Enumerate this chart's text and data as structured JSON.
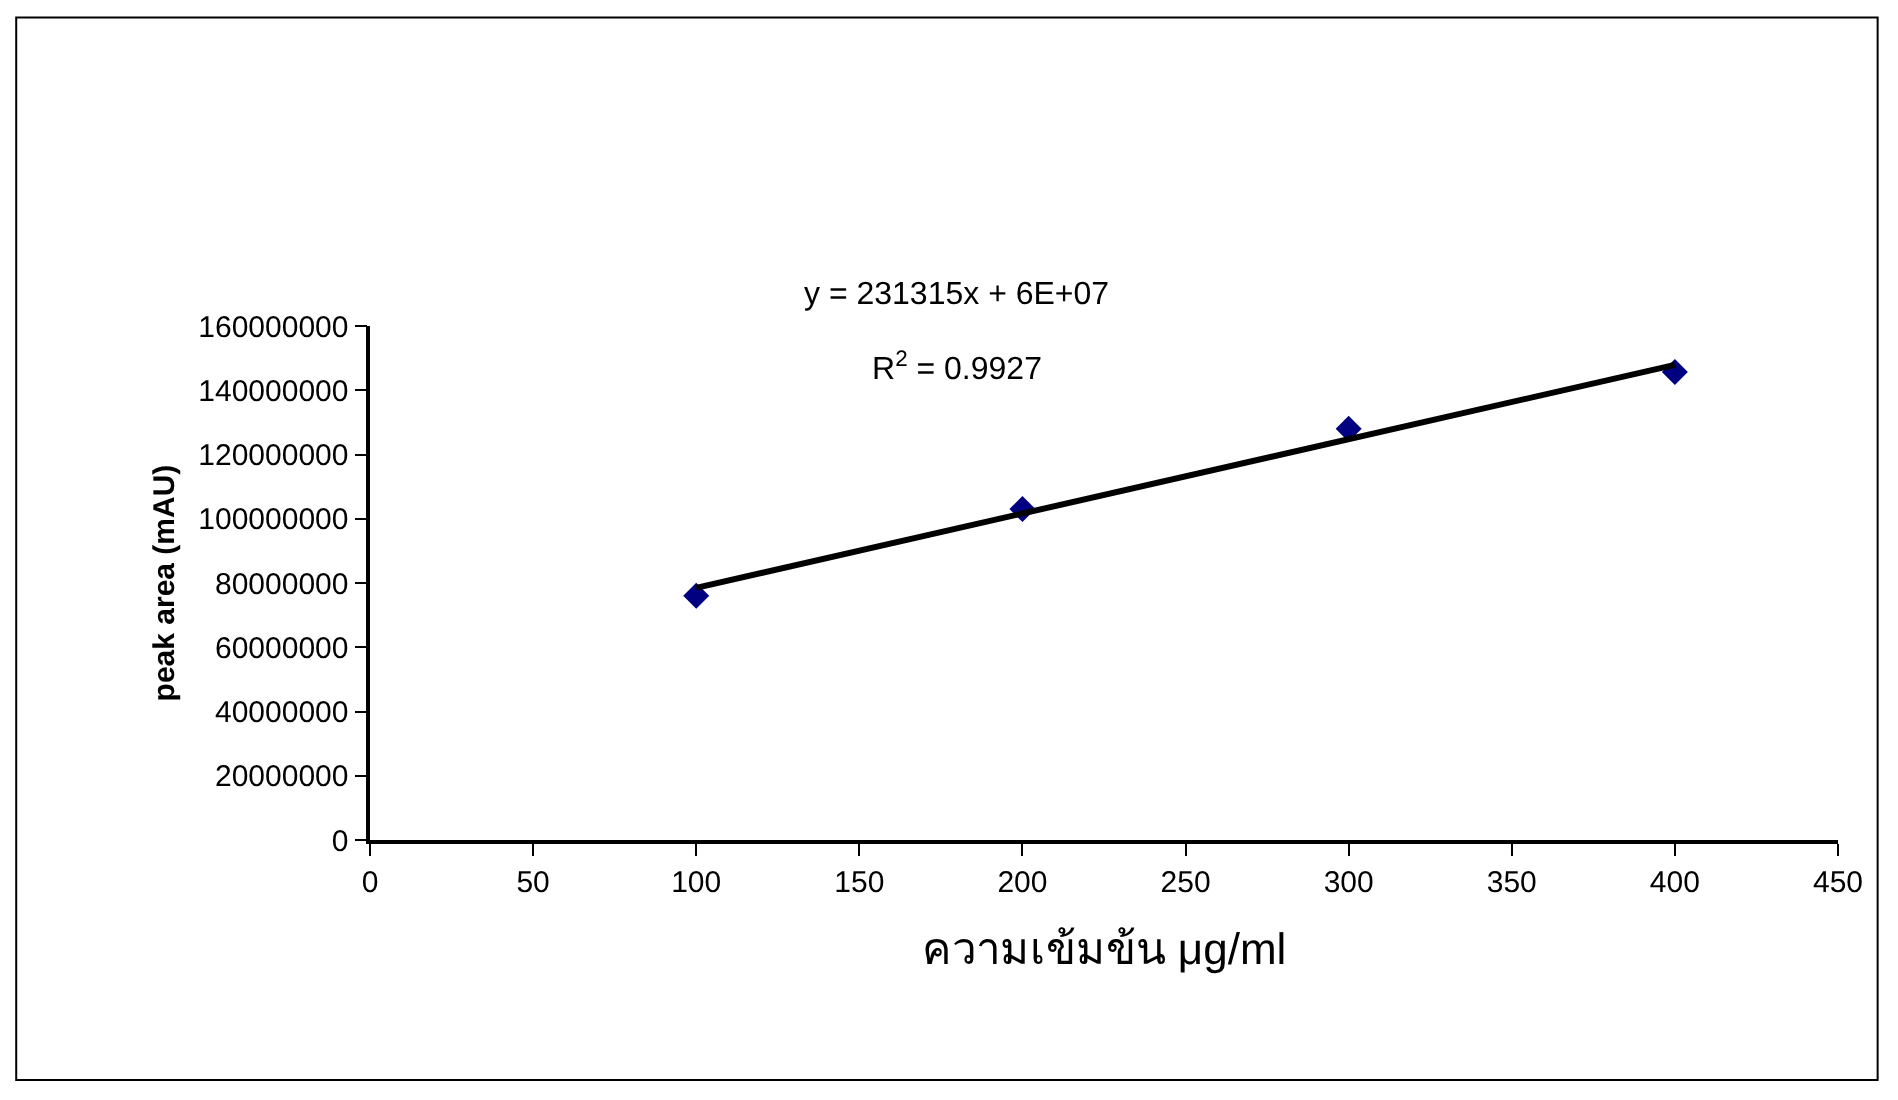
{
  "chart_data": {
    "type": "scatter",
    "xlabel": "ความเข้มข้น μg/ml",
    "ylabel": "peak area (mAU)",
    "x": [
      100,
      200,
      300,
      400
    ],
    "series": [
      {
        "color": "#000080",
        "marker": "diamond",
        "values": [
          76000000,
          103000000,
          128000000,
          145700000
        ]
      },
      {
        "type": "line",
        "color": "#000000",
        "x": [
          100,
          400
        ],
        "values": [
          78500000,
          147900000
        ],
        "marker": "none",
        "line_style": "solid"
      }
    ],
    "annotations": [
      "y = 231315x + 6E+07",
      "R$^{2}$ = 0.9927"
    ],
    "xlim": [
      0,
      450
    ],
    "xticks": [
      0,
      50,
      100,
      150,
      200,
      250,
      300,
      350,
      400,
      450
    ],
    "ylim": [
      0,
      160000000
    ],
    "yticks": [
      0,
      20000000,
      40000000,
      60000000,
      80000000,
      100000000,
      120000000,
      140000000,
      160000000
    ]
  }
}
